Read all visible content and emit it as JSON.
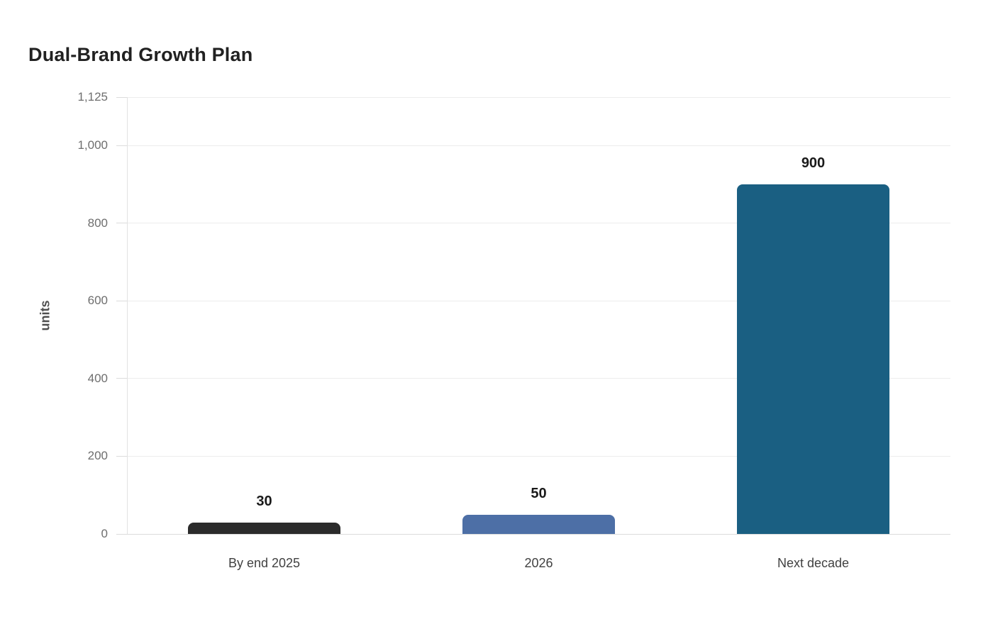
{
  "page": {
    "title": "Dual-Brand Growth Plan"
  },
  "chart_data": {
    "type": "bar",
    "title": "Dual-Brand Growth Plan",
    "categories": [
      "By end 2025",
      "2026",
      "Next decade"
    ],
    "values": [
      30,
      50,
      900
    ],
    "data_labels": [
      "30",
      "50",
      "900"
    ],
    "xlabel": "",
    "ylabel": "units",
    "ylim": [
      0,
      1125
    ],
    "yticks": [
      0,
      200,
      400,
      600,
      800,
      1000,
      1125
    ],
    "ytick_labels": [
      "0",
      "200",
      "400",
      "600",
      "800",
      "1,000",
      "1,125"
    ],
    "grid": true,
    "legend": false,
    "bar_colors": [
      "#2b2b2b",
      "#4d6fa6",
      "#1a5f82"
    ],
    "bar_patterns": [
      "dots",
      "solid",
      "solid"
    ]
  },
  "colors": {
    "background": "#ffffff",
    "gridline": "#ececec",
    "zero_line": "#dcdcdc",
    "axis_line": "#e2e2e2",
    "tick_dash": "#dcdcdc",
    "tick_label": "#6e6e6e",
    "category_label": "#414141",
    "value_label": "#1a1a1a",
    "title": "#212121",
    "ylabel": "#4f4f4f"
  }
}
